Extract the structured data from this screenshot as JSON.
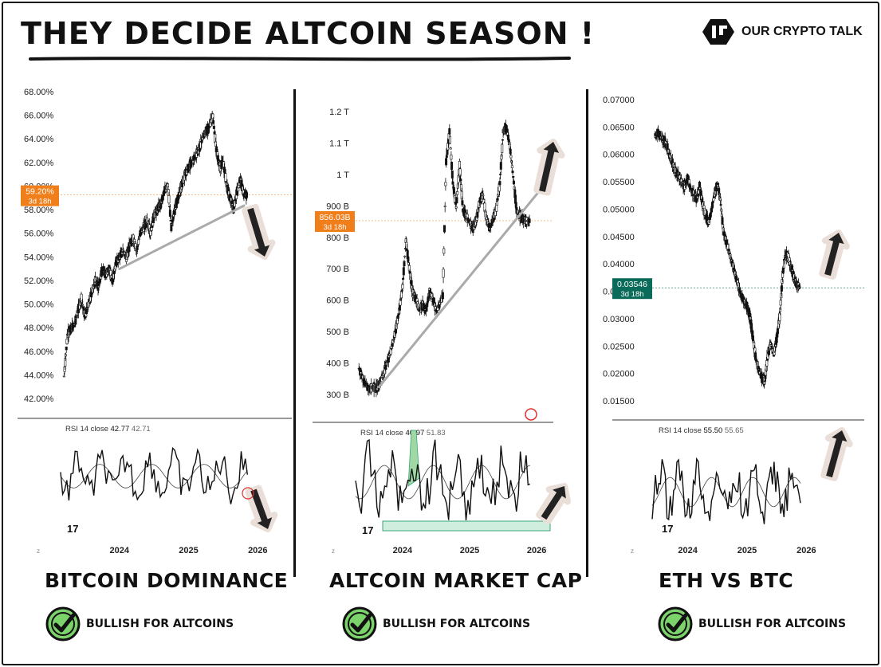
{
  "header": {
    "title": "THEY DECIDE ALTCOIN SEASON !",
    "brand": "OUR CRYPTO TALK"
  },
  "panels": [
    {
      "title": "BITCOIN DOMINANCE",
      "verdict": "BULLISH FOR ALTCOINS",
      "price_label": "59.20%",
      "countdown": "3d 18h",
      "rsi_label": "RSI 14 close",
      "rsi_val1": "42.77",
      "rsi_val2": "42.71",
      "accent": "#f07f1b"
    },
    {
      "title": "ALTCOIN MARKET CAP",
      "verdict": "BULLISH FOR ALTCOINS",
      "price_label": "856.03B",
      "countdown": "3d 18h",
      "rsi_label": "RSI 14 close",
      "rsi_val1": "40.97",
      "rsi_val2": "51.83",
      "accent": "#f07f1b"
    },
    {
      "title": "ETH VS BTC",
      "verdict": "BULLISH FOR ALTCOINS",
      "price_label": "0.03546",
      "countdown": "3d 18h",
      "rsi_label": "RSI 14 close",
      "rsi_val1": "55.50",
      "rsi_val2": "55.65",
      "accent": "#0b6b5a"
    }
  ],
  "chart_data": [
    {
      "type": "line",
      "title": "BITCOIN DOMINANCE",
      "y_ticks": [
        "68.00%",
        "66.00%",
        "64.00%",
        "62.00%",
        "60.00%",
        "58.00%",
        "56.00%",
        "54.00%",
        "52.00%",
        "50.00%",
        "48.00%",
        "46.00%",
        "44.00%",
        "42.00%"
      ],
      "x_ticks": [
        "2024",
        "2025",
        "2026"
      ],
      "x_tick_pos": [
        2024,
        2025,
        2026
      ],
      "ylim": [
        42,
        68
      ],
      "xlim": [
        2023.15,
        2026.25
      ],
      "current": 59.2,
      "trendline": [
        [
          2024.0,
          53.0
        ],
        [
          2025.8,
          58.3
        ]
      ],
      "series": [
        {
          "x": [
            2023.2,
            2023.25,
            2023.3,
            2023.35,
            2023.4,
            2023.45,
            2023.5,
            2023.55,
            2023.6,
            2023.65,
            2023.7,
            2023.75,
            2023.8,
            2023.85,
            2023.9,
            2023.95,
            2024.0,
            2024.05,
            2024.1,
            2024.15,
            2024.2,
            2024.25,
            2024.3,
            2024.35,
            2024.4,
            2024.45,
            2024.5,
            2024.55,
            2024.6,
            2024.65,
            2024.7,
            2024.75,
            2024.8,
            2024.85,
            2024.9,
            2024.95,
            2025.0,
            2025.05,
            2025.1,
            2025.15,
            2025.2,
            2025.25,
            2025.3,
            2025.35,
            2025.4,
            2025.45,
            2025.5,
            2025.55,
            2025.6,
            2025.65,
            2025.7,
            2025.75,
            2025.8,
            2025.85
          ],
          "y": [
            44.0,
            47.5,
            48.0,
            48.3,
            49.5,
            50.5,
            49.0,
            50.0,
            51.0,
            52.0,
            51.5,
            53.0,
            52.5,
            53.0,
            52.0,
            53.5,
            54.0,
            54.5,
            54.0,
            55.0,
            55.5,
            54.5,
            56.0,
            56.5,
            57.0,
            56.0,
            57.5,
            58.0,
            58.5,
            59.5,
            60.0,
            56.5,
            58.0,
            59.0,
            60.0,
            61.0,
            61.5,
            62.0,
            62.5,
            63.0,
            64.0,
            64.5,
            65.0,
            65.8,
            63.0,
            61.5,
            62.0,
            60.0,
            59.0,
            58.0,
            59.5,
            60.5,
            59.2,
            59.2
          ]
        }
      ]
    },
    {
      "type": "line",
      "title": "ALTCOIN MARKET CAP",
      "y_ticks": [
        "1.2 T",
        "1.1 T",
        "1 T",
        "900 B",
        "800 B",
        "700 B",
        "600 B",
        "500 B",
        "400 B",
        "300 B"
      ],
      "x_ticks": [
        "2024",
        "2025",
        "2026"
      ],
      "x_tick_pos": [
        2024,
        2025,
        2026
      ],
      "ylim": [
        280,
        1220
      ],
      "xlim": [
        2023.3,
        2026.2
      ],
      "current": 856.03,
      "trendline": [
        [
          2023.65,
          310
        ],
        [
          2026.1,
          970
        ]
      ],
      "series": [
        {
          "x": [
            2023.35,
            2023.4,
            2023.45,
            2023.5,
            2023.55,
            2023.6,
            2023.65,
            2023.7,
            2023.75,
            2023.8,
            2023.85,
            2023.9,
            2023.95,
            2024.0,
            2024.05,
            2024.1,
            2024.15,
            2024.2,
            2024.25,
            2024.3,
            2024.35,
            2024.4,
            2024.45,
            2024.5,
            2024.55,
            2024.6,
            2024.65,
            2024.7,
            2024.75,
            2024.8,
            2024.85,
            2024.9,
            2024.95,
            2025.0,
            2025.05,
            2025.1,
            2025.15,
            2025.2,
            2025.25,
            2025.3,
            2025.35,
            2025.4,
            2025.45,
            2025.5,
            2025.55,
            2025.6,
            2025.65,
            2025.7,
            2025.75,
            2025.8,
            2025.85,
            2025.9
          ],
          "y": [
            370,
            340,
            320,
            300,
            310,
            305,
            320,
            340,
            380,
            410,
            450,
            500,
            560,
            640,
            790,
            700,
            620,
            600,
            560,
            580,
            560,
            620,
            600,
            560,
            580,
            610,
            1050,
            1150,
            980,
            900,
            1040,
            890,
            870,
            850,
            830,
            860,
            920,
            940,
            860,
            830,
            860,
            900,
            980,
            1150,
            1160,
            1100,
            1000,
            890,
            870,
            860,
            856,
            856
          ]
        }
      ]
    },
    {
      "type": "line",
      "title": "ETH VS BTC",
      "y_ticks": [
        "0.07000",
        "0.06500",
        "0.06000",
        "0.05500",
        "0.05000",
        "0.04500",
        "0.04000",
        "0.03500",
        "0.03000",
        "0.02500",
        "0.02000",
        "0.01500"
      ],
      "x_ticks": [
        "2024",
        "2025",
        "2026"
      ],
      "x_tick_pos": [
        2024,
        2025,
        2026
      ],
      "ylim": [
        0.014,
        0.071
      ],
      "xlim": [
        2023.4,
        2026.25
      ],
      "current": 0.03546,
      "series": [
        {
          "x": [
            2023.45,
            2023.5,
            2023.55,
            2023.6,
            2023.65,
            2023.7,
            2023.75,
            2023.8,
            2023.85,
            2023.9,
            2023.95,
            2024.0,
            2024.05,
            2024.1,
            2024.15,
            2024.2,
            2024.25,
            2024.3,
            2024.35,
            2024.4,
            2024.45,
            2024.5,
            2024.55,
            2024.6,
            2024.65,
            2024.7,
            2024.75,
            2024.8,
            2024.85,
            2024.9,
            2024.95,
            2025.0,
            2025.05,
            2025.1,
            2025.15,
            2025.2,
            2025.25,
            2025.3,
            2025.35,
            2025.4,
            2025.45,
            2025.5,
            2025.55,
            2025.6,
            2025.65,
            2025.7,
            2025.75,
            2025.8,
            2025.85,
            2025.9
          ],
          "y": [
            0.064,
            0.0645,
            0.0635,
            0.063,
            0.062,
            0.06,
            0.0585,
            0.057,
            0.0565,
            0.055,
            0.0545,
            0.056,
            0.054,
            0.053,
            0.052,
            0.0545,
            0.051,
            0.049,
            0.0475,
            0.05,
            0.053,
            0.055,
            0.052,
            0.046,
            0.044,
            0.042,
            0.04,
            0.038,
            0.036,
            0.034,
            0.033,
            0.032,
            0.03,
            0.026,
            0.022,
            0.02,
            0.0185,
            0.018,
            0.023,
            0.025,
            0.023,
            0.026,
            0.03,
            0.038,
            0.042,
            0.041,
            0.039,
            0.037,
            0.036,
            0.0355
          ]
        }
      ]
    }
  ]
}
